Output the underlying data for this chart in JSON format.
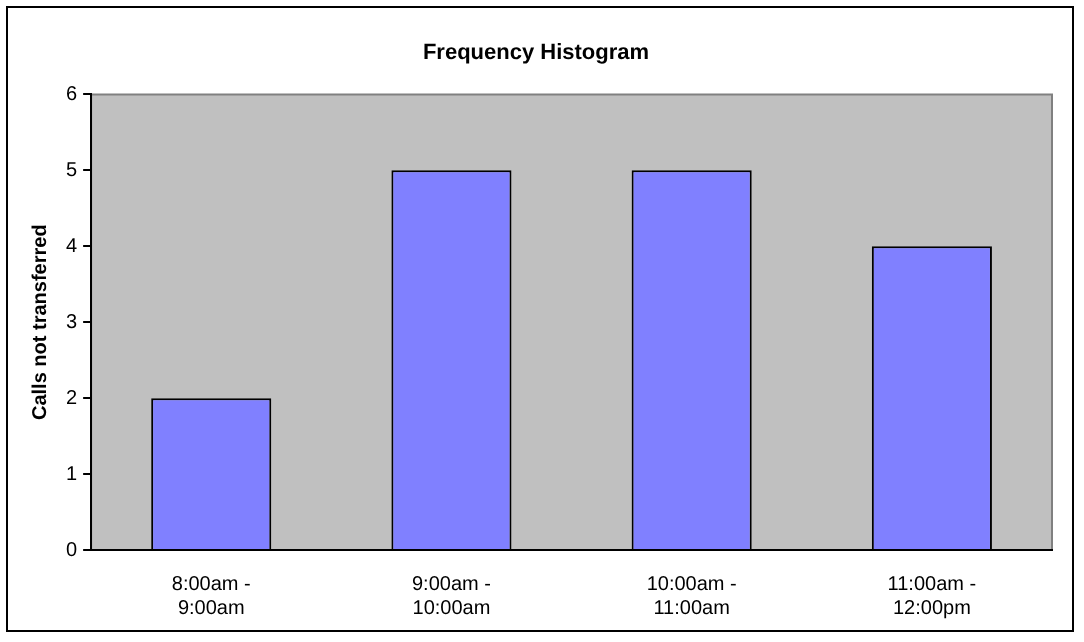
{
  "chart_data": {
    "type": "bar",
    "title": "Frequency Histogram",
    "ylabel": "Calls not transferred",
    "categories": [
      "8:00am - 9:00am",
      "9:00am - 10:00am",
      "10:00am - 11:00am",
      "11:00am - 12:00pm"
    ],
    "values": [
      2,
      5,
      5,
      4
    ],
    "color": "#8080ff",
    "ylim": [
      0,
      6
    ],
    "yticks": [
      0,
      1,
      2,
      3,
      4,
      5,
      6
    ],
    "grid": false,
    "legend": false
  }
}
